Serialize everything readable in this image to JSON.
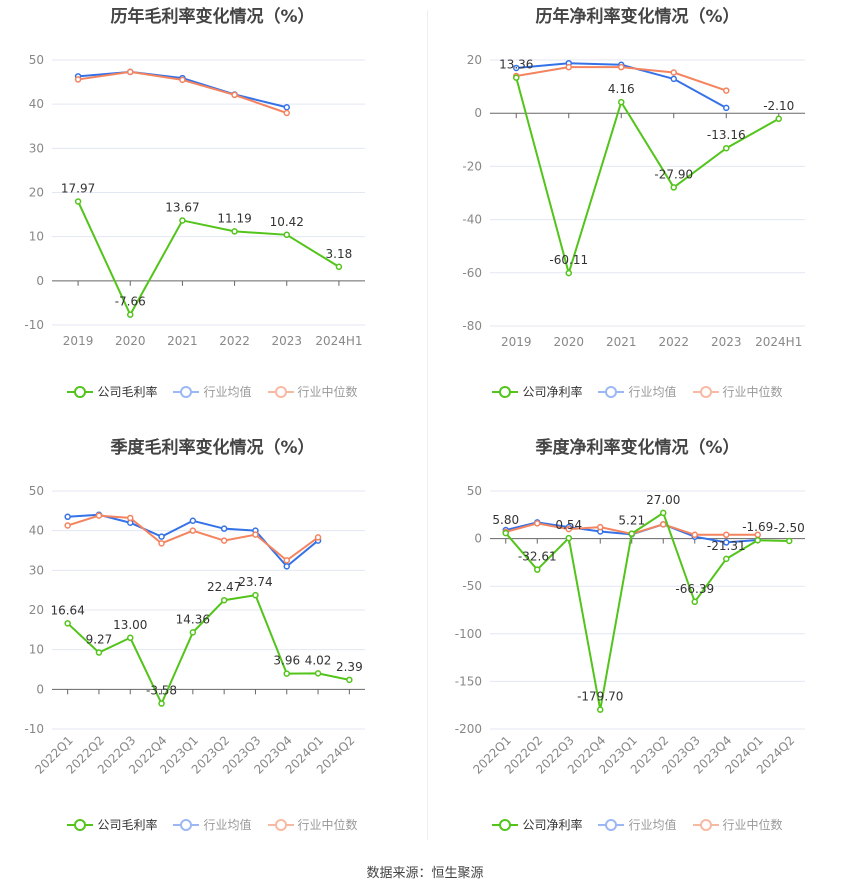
{
  "source": "数据来源：恒生聚源",
  "colors": {
    "company": "#52c41a",
    "avg": "#3572e8",
    "median": "#f4845f",
    "avg_legend": "#9cb8f4",
    "median_legend": "#f8b9a3"
  },
  "chart_data": [
    {
      "type": "line",
      "title": "历年毛利率变化情况（%）",
      "categories": [
        "2019",
        "2020",
        "2021",
        "2022",
        "2023",
        "2024H1"
      ],
      "ylim": [
        -10,
        50
      ],
      "yticks": [
        50,
        40,
        30,
        20,
        10,
        0,
        -10
      ],
      "grid": true,
      "legend_position": "bottom",
      "series": [
        {
          "name": "公司毛利率",
          "key": "company",
          "labels": true,
          "values": [
            17.97,
            -7.66,
            13.67,
            11.19,
            10.42,
            3.18
          ]
        },
        {
          "name": "行业均值",
          "key": "avg",
          "values": [
            46.3,
            47.3,
            45.9,
            42.2,
            39.3,
            null
          ]
        },
        {
          "name": "行业中位数",
          "key": "median",
          "values": [
            45.6,
            47.3,
            45.5,
            42.1,
            38.0,
            null
          ]
        }
      ]
    },
    {
      "type": "line",
      "title": "历年净利率变化情况（%）",
      "categories": [
        "2019",
        "2020",
        "2021",
        "2022",
        "2023",
        "2024H1"
      ],
      "ylim": [
        -80,
        20
      ],
      "yticks": [
        20,
        0,
        -20,
        -40,
        -60,
        -80
      ],
      "grid": true,
      "legend_position": "bottom",
      "series": [
        {
          "name": "公司净利率",
          "key": "company",
          "labels": true,
          "values": [
            13.36,
            -60.11,
            4.16,
            -27.9,
            -13.16,
            -2.1
          ]
        },
        {
          "name": "行业均值",
          "key": "avg",
          "values": [
            17.0,
            18.8,
            18.2,
            12.9,
            2.0,
            null
          ]
        },
        {
          "name": "行业中位数",
          "key": "median",
          "values": [
            14.0,
            17.3,
            17.3,
            15.3,
            8.5,
            null
          ]
        }
      ]
    },
    {
      "type": "line",
      "title": "季度毛利率变化情况（%）",
      "categories": [
        "2022Q1",
        "2022Q2",
        "2022Q3",
        "2022Q4",
        "2023Q1",
        "2023Q2",
        "2023Q3",
        "2023Q4",
        "2024Q1",
        "2024Q2"
      ],
      "ylim": [
        -10,
        50
      ],
      "yticks": [
        50,
        40,
        30,
        20,
        10,
        0,
        -10
      ],
      "grid": true,
      "legend_position": "bottom",
      "series": [
        {
          "name": "公司毛利率",
          "key": "company",
          "labels": true,
          "values": [
            16.64,
            9.27,
            13.0,
            -3.58,
            14.36,
            22.47,
            23.74,
            3.96,
            4.02,
            2.39
          ]
        },
        {
          "name": "行业均值",
          "key": "avg",
          "values": [
            43.5,
            44.0,
            42.0,
            38.5,
            42.5,
            40.5,
            40.0,
            31.0,
            37.5,
            null
          ]
        },
        {
          "name": "行业中位数",
          "key": "median",
          "values": [
            41.3,
            43.8,
            43.2,
            36.8,
            40.0,
            37.5,
            39.0,
            32.5,
            38.3,
            null
          ]
        }
      ]
    },
    {
      "type": "line",
      "title": "季度净利率变化情况（%）",
      "categories": [
        "2022Q1",
        "2022Q2",
        "2022Q3",
        "2022Q4",
        "2023Q1",
        "2023Q2",
        "2023Q3",
        "2023Q4",
        "2024Q1",
        "2024Q2"
      ],
      "ylim": [
        -200,
        50
      ],
      "yticks": [
        50,
        0,
        -50,
        -100,
        -150,
        -200
      ],
      "grid": true,
      "legend_position": "bottom",
      "series": [
        {
          "name": "公司净利率",
          "key": "company",
          "labels": true,
          "values": [
            5.8,
            -32.61,
            0.54,
            -179.7,
            5.21,
            27.0,
            -66.39,
            -21.31,
            -1.69,
            -2.5
          ]
        },
        {
          "name": "行业均值",
          "key": "avg",
          "values": [
            9.0,
            17.0,
            12.0,
            7.5,
            4.5,
            15.0,
            2.0,
            -4.0,
            -1.5,
            null
          ]
        },
        {
          "name": "行业中位数",
          "key": "median",
          "values": [
            7.0,
            16.0,
            10.0,
            12.0,
            5.0,
            15.0,
            4.0,
            4.0,
            4.0,
            null
          ]
        }
      ]
    }
  ]
}
